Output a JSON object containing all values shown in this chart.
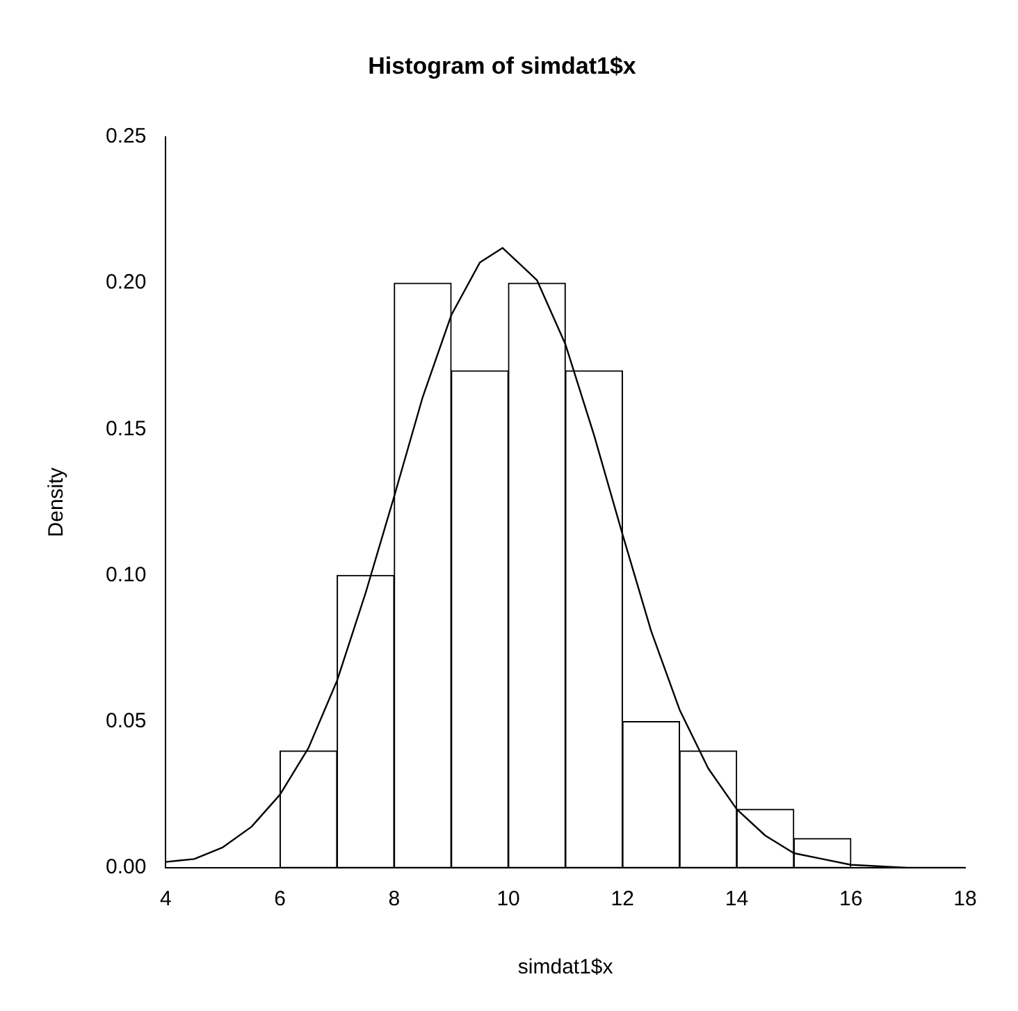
{
  "chart_data": {
    "type": "histogram",
    "title": "Histogram of simdat1$x",
    "xlabel": "simdat1$x",
    "ylabel": "Density",
    "bins": [
      6,
      7,
      8,
      9,
      10,
      11,
      12,
      13,
      14,
      15,
      16
    ],
    "values": [
      0.04,
      0.1,
      0.2,
      0.17,
      0.2,
      0.17,
      0.05,
      0.04,
      0.02,
      0.01
    ],
    "color": "#ffffff",
    "series": [
      {
        "type": "line",
        "color": "#000000",
        "x": [
          4,
          4.5,
          5,
          5.5,
          6,
          6.5,
          7,
          7.5,
          8,
          8.5,
          9,
          9.5,
          9.9,
          10.5,
          11,
          11.5,
          12,
          12.5,
          13,
          13.5,
          14,
          14.5,
          15,
          15.5,
          16,
          17,
          18
        ],
        "values": [
          0.002,
          0.003,
          0.007,
          0.014,
          0.025,
          0.041,
          0.064,
          0.094,
          0.127,
          0.161,
          0.189,
          0.207,
          0.212,
          0.201,
          0.179,
          0.148,
          0.114,
          0.081,
          0.054,
          0.034,
          0.02,
          0.011,
          0.005,
          0.003,
          0.001,
          0.0,
          0.0
        ]
      }
    ],
    "marker": "none",
    "xlim": [
      4,
      18
    ],
    "xticks": [
      4,
      6,
      8,
      10,
      12,
      14,
      16,
      18
    ],
    "ylim": [
      0,
      0.25
    ],
    "yticks": [
      {
        "value": 0,
        "label": "0.00"
      },
      {
        "value": 0.05,
        "label": "0.05"
      },
      {
        "value": 0.1,
        "label": "0.10"
      },
      {
        "value": 0.15,
        "label": "0.15"
      },
      {
        "value": 0.2,
        "label": "0.20"
      },
      {
        "value": 0.25,
        "label": "0.25"
      }
    ],
    "legend": false
  }
}
